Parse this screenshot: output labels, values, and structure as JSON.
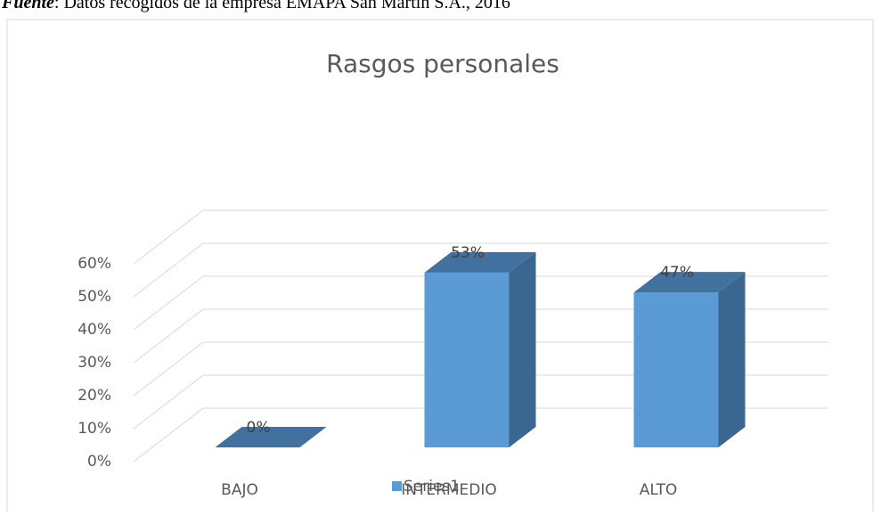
{
  "chart_data": {
    "type": "bar3d",
    "source_label": "Fuente",
    "source": ": Datos recogidos de la empresa EMAPA San Martín S.A., 2016",
    "title": "Rasgos personales",
    "categories": [
      "BAJO",
      "INTERMEDIO",
      "ALTO"
    ],
    "series": [
      {
        "name": "Series1",
        "color": "#5b9bd5",
        "values": [
          0,
          53,
          47
        ],
        "value_labels": [
          "0%",
          "53%",
          "47%"
        ]
      }
    ],
    "ylim": [
      0,
      60
    ],
    "yticks": [
      {
        "value": 0,
        "label": "0%"
      },
      {
        "value": 10,
        "label": "10%"
      },
      {
        "value": 20,
        "label": "20%"
      },
      {
        "value": 30,
        "label": "30%"
      },
      {
        "value": 40,
        "label": "40%"
      },
      {
        "value": 50,
        "label": "50%"
      },
      {
        "value": 60,
        "label": "60%"
      }
    ],
    "grid": true,
    "legend": "bottom"
  }
}
